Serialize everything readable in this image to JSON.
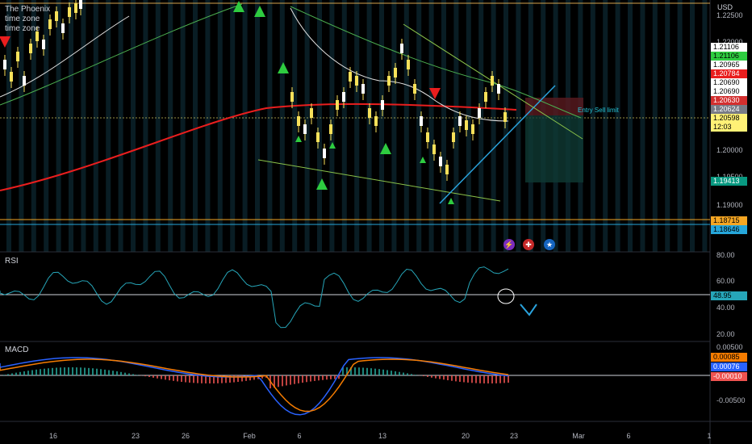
{
  "symbol_legend": {
    "title": "The Phoenix",
    "line2": "time zone",
    "line3": "time zone"
  },
  "price_axis": {
    "currency": "USD",
    "ticks": [
      "1.22500",
      "1.22000",
      "1.20000",
      "1.19500",
      "1.19000"
    ]
  },
  "price_badges": [
    {
      "value": "1.21106",
      "bg": "#ffffff",
      "fg": "#000000"
    },
    {
      "value": "1.21106",
      "bg": "#2ecc40",
      "fg": "#000000"
    },
    {
      "value": "1.20965",
      "bg": "#ffffff",
      "fg": "#000000"
    },
    {
      "value": "1.20784",
      "bg": "#e91e1e",
      "fg": "#ffffff"
    },
    {
      "value": "1.20690",
      "bg": "#ffffff",
      "fg": "#000000"
    },
    {
      "value": "1.20690",
      "bg": "#ffffff",
      "fg": "#000000"
    },
    {
      "value": "1.20630",
      "bg": "#d32f2f",
      "fg": "#ffffff"
    },
    {
      "value": "1.20624",
      "bg": "#787b86",
      "fg": "#ffffff"
    },
    {
      "value": "1.20598",
      "bg": "#fff176",
      "fg": "#000000"
    },
    {
      "value": "12:03",
      "bg": "#fff176",
      "fg": "#000000"
    },
    {
      "value": "1.19413",
      "bg": "#089981",
      "fg": "#ffffff"
    },
    {
      "value": "1.18715",
      "bg": "#f5a623",
      "fg": "#000000"
    },
    {
      "value": "1.18646",
      "bg": "#26a6da",
      "fg": "#000000"
    }
  ],
  "annotation": {
    "entry_label": "Entry Sell limit"
  },
  "rsi": {
    "label": "RSI",
    "ticks": [
      "80.00",
      "60.00",
      "40.00",
      "20.00"
    ],
    "current": "48.95"
  },
  "macd": {
    "label": "MACD",
    "ticks": [
      "0.00500",
      "-0.00500"
    ],
    "badges": [
      {
        "value": "0.00085",
        "bg": "#f57c00",
        "fg": "#000000"
      },
      {
        "value": "0.00076",
        "bg": "#2962ff",
        "fg": "#ffffff"
      },
      {
        "value": "-0.00010",
        "bg": "#ef5350",
        "fg": "#ffffff"
      }
    ]
  },
  "time_axis": [
    "16",
    "23",
    "26",
    "Feb",
    "6",
    "13",
    "20",
    "23",
    "Mar",
    "6",
    "1"
  ],
  "event_icons": [
    "lightning-icon",
    "uk-flag-icon",
    "us-flag-icon"
  ],
  "colors": {
    "ma_red": "#e91e1e",
    "ma_green": "#4caf50",
    "ma_white": "#e0e0e0",
    "candle": "#f7e15a",
    "signal_up": "#2ecc40",
    "signal_down": "#e91e1e",
    "trend_blue": "#2aa3dd",
    "rsi_line": "#26a6b9",
    "macd_line": "#2962ff",
    "signal_line": "#f57c00"
  }
}
